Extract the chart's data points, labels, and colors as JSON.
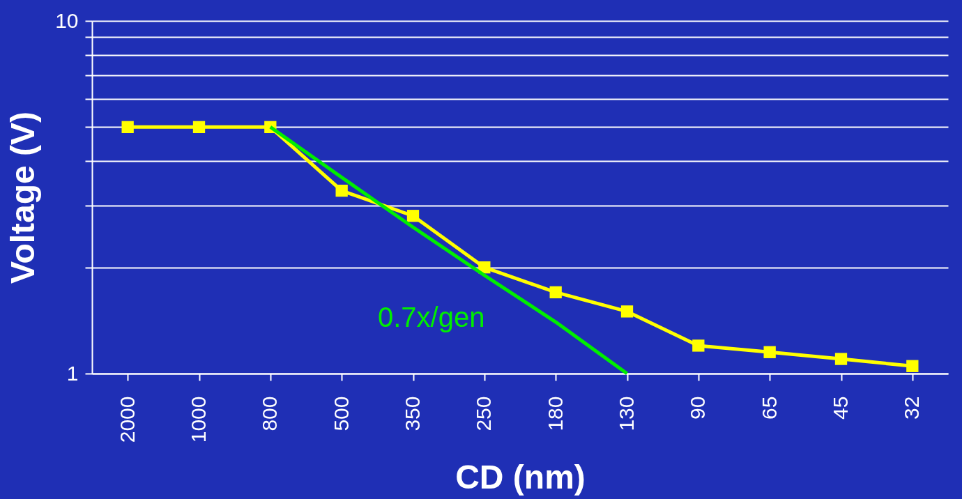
{
  "chart_data": {
    "type": "line",
    "xlabel": "CD (nm)",
    "ylabel": "Voltage (V)",
    "categories": [
      "2000",
      "1000",
      "800",
      "500",
      "350",
      "250",
      "180",
      "130",
      "90",
      "65",
      "45",
      "32"
    ],
    "series": [
      {
        "color": "#ffff00",
        "values": [
          5.0,
          5.0,
          5.0,
          3.3,
          2.8,
          2.0,
          1.7,
          1.5,
          1.2,
          1.15,
          1.1,
          1.05
        ]
      },
      {
        "type": "line",
        "color": "#00ee00",
        "marker": "none",
        "values": [
          null,
          null,
          5.0,
          3.6,
          2.6,
          1.9,
          1.4,
          1.0,
          null,
          null,
          null,
          null
        ]
      }
    ],
    "log": "y",
    "ylim": [
      1,
      10
    ],
    "yticks": [
      1,
      {
        "value": 2,
        "label": null
      },
      {
        "value": 3,
        "label": null
      },
      {
        "value": 4,
        "label": null
      },
      {
        "value": 5,
        "label": null
      },
      {
        "value": 6,
        "label": null
      },
      {
        "value": 7,
        "label": null
      },
      {
        "value": 8,
        "label": null
      },
      {
        "value": 9,
        "label": null
      },
      10
    ],
    "grid": "y",
    "marker": "square",
    "annotations": [
      "0.7x/gen"
    ]
  }
}
